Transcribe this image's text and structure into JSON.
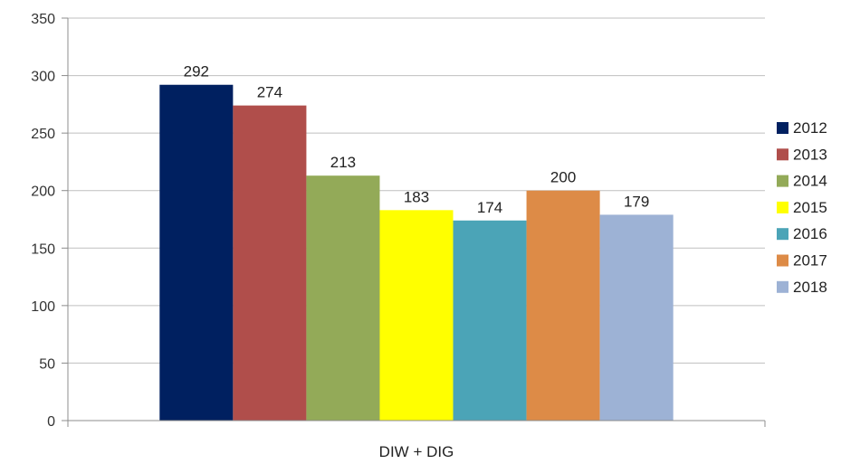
{
  "chart_data": {
    "type": "bar",
    "categories": [
      "DIW + DIG"
    ],
    "series": [
      {
        "name": "2012",
        "values": [
          292
        ],
        "color": "#002060"
      },
      {
        "name": "2013",
        "values": [
          274
        ],
        "color": "#B04E4B"
      },
      {
        "name": "2014",
        "values": [
          213
        ],
        "color": "#93AA58"
      },
      {
        "name": "2015",
        "values": [
          183
        ],
        "color": "#FFFF00"
      },
      {
        "name": "2016",
        "values": [
          174
        ],
        "color": "#4BA4B7"
      },
      {
        "name": "2017",
        "values": [
          200
        ],
        "color": "#DD8B47"
      },
      {
        "name": "2018",
        "values": [
          179
        ],
        "color": "#9DB2D5"
      }
    ],
    "yticks": [
      "0",
      "50",
      "100",
      "150",
      "200",
      "250",
      "300",
      "350"
    ],
    "ylim": [
      0,
      350
    ],
    "title": "",
    "xlabel": "",
    "ylabel": "",
    "grid": true,
    "legend": "right",
    "data_labels": true
  }
}
